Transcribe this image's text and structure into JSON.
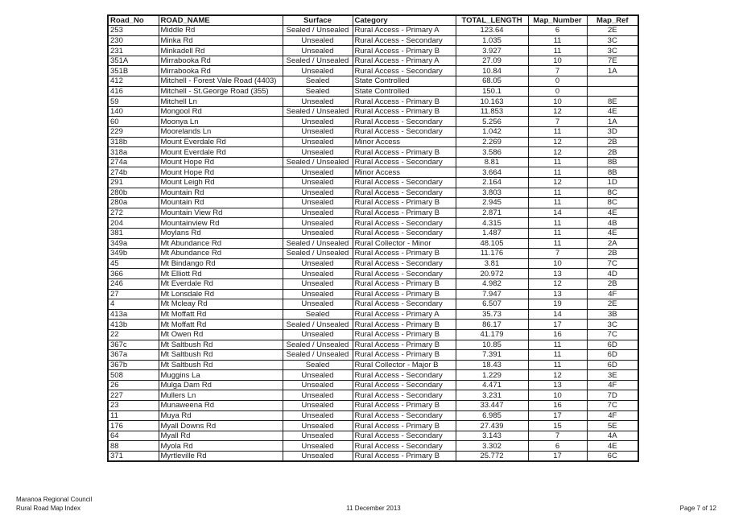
{
  "footer": {
    "left_line1": "Maranoa Regional Council",
    "left_line2": "Rural Road Map Index",
    "center": "11 December 2013",
    "right": "Page 7 of 12"
  },
  "colors": {
    "page_background": "#ffffff",
    "text": "#1a1a1a",
    "table_border": "#1a1a1a"
  },
  "table": {
    "columns": [
      {
        "key": "road_no",
        "label": "Road_No"
      },
      {
        "key": "road_name",
        "label": "ROAD_NAME"
      },
      {
        "key": "surface",
        "label": "Surface"
      },
      {
        "key": "category",
        "label": "Category"
      },
      {
        "key": "total_length",
        "label": "TOTAL_LENGTH"
      },
      {
        "key": "map_number",
        "label": "Map_Number"
      },
      {
        "key": "map_ref",
        "label": "Map_Ref"
      }
    ],
    "rows": [
      [
        "253",
        "Middle Rd",
        "Sealed / Unsealed",
        "Rural Access - Primary A",
        "123.64",
        "6",
        "2E"
      ],
      [
        "230",
        "Minka Rd",
        "Unsealed",
        "Rural Access - Secondary",
        "1.035",
        "11",
        "3C"
      ],
      [
        "231",
        "Minkadell Rd",
        "Unsealed",
        "Rural Access - Primary B",
        "3.927",
        "11",
        "3C"
      ],
      [
        "351A",
        "Mirrabooka Rd",
        "Sealed / Unsealed",
        "Rural Access - Primary A",
        "27.09",
        "10",
        "7E"
      ],
      [
        "351B",
        "Mirrabooka Rd",
        "Unsealed",
        "Rural Access - Secondary",
        "10.84",
        "7",
        "1A"
      ],
      [
        "412",
        "Mitchell - Forest Vale Road (4403)",
        "Sealed",
        "State Controlled",
        "68.05",
        "0",
        ""
      ],
      [
        "416",
        "Mitchell - St.George Road (355)",
        "Sealed",
        "State Controlled",
        "150.1",
        "0",
        ""
      ],
      [
        "59",
        "Mitchell Ln",
        "Unsealed",
        "Rural Access - Primary B",
        "10.163",
        "10",
        "8E"
      ],
      [
        "140",
        "Mongool Rd",
        "Sealed / Unsealed",
        "Rural Access - Primary B",
        "11.853",
        "12",
        "4E"
      ],
      [
        "60",
        "Moonya Ln",
        "Unsealed",
        "Rural Access - Secondary",
        "5.256",
        "7",
        "1A"
      ],
      [
        "229",
        "Moorelands Ln",
        "Unsealed",
        "Rural Access - Secondary",
        "1.042",
        "11",
        "3D"
      ],
      [
        "318b",
        "Mount Everdale Rd",
        "Unsealed",
        "Minor Access",
        "2.269",
        "12",
        "2B"
      ],
      [
        "318a",
        "Mount Everdale Rd",
        "Unsealed",
        "Rural Access - Primary B",
        "3.586",
        "12",
        "2B"
      ],
      [
        "274a",
        "Mount Hope Rd",
        "Sealed / Unsealed",
        "Rural Access - Secondary",
        "8.81",
        "11",
        "8B"
      ],
      [
        "274b",
        "Mount Hope Rd",
        "Unsealed",
        "Minor Access",
        "3.664",
        "11",
        "8B"
      ],
      [
        "291",
        "Mount Leigh Rd",
        "Unsealed",
        "Rural Access - Secondary",
        "2.164",
        "12",
        "1D"
      ],
      [
        "280b",
        "Mountain Rd",
        "Unsealed",
        "Rural Access - Secondary",
        "3.803",
        "11",
        "8C"
      ],
      [
        "280a",
        "Mountain Rd",
        "Unsealed",
        "Rural Access - Primary B",
        "2.945",
        "11",
        "8C"
      ],
      [
        "272",
        "Mountain View Rd",
        "Unsealed",
        "Rural Access - Primary B",
        "2.871",
        "14",
        "4E"
      ],
      [
        "204",
        "Mountainview Rd",
        "Unsealed",
        "Rural Access - Secondary",
        "4.315",
        "11",
        "4B"
      ],
      [
        "381",
        "Moylans Rd",
        "Unsealed",
        "Rural Access - Secondary",
        "1.487",
        "11",
        "4E"
      ],
      [
        "349a",
        "Mt Abundance Rd",
        "Sealed / Unsealed",
        "Rural Collector - Minor",
        "48.105",
        "11",
        "2A"
      ],
      [
        "349b",
        "Mt Abundance Rd",
        "Sealed / Unsealed",
        "Rural Access - Primary B",
        "11.176",
        "7",
        "2B"
      ],
      [
        "45",
        "Mt Bindango Rd",
        "Unsealed",
        "Rural Access - Secondary",
        "3.81",
        "10",
        "7C"
      ],
      [
        "366",
        "Mt Elliott Rd",
        "Unsealed",
        "Rural Access - Secondary",
        "20.972",
        "13",
        "4D"
      ],
      [
        "246",
        "Mt Everdale Rd",
        "Unsealed",
        "Rural Access - Primary B",
        "4.982",
        "12",
        "2B"
      ],
      [
        "27",
        "Mt Lonsdale Rd",
        "Unsealed",
        "Rural Access - Primary B",
        "7.947",
        "13",
        "4F"
      ],
      [
        "4",
        "Mt Mcleay Rd",
        "Unsealed",
        "Rural Access - Secondary",
        "6.507",
        "19",
        "2E"
      ],
      [
        "413a",
        "Mt Moffatt Rd",
        "Sealed",
        "Rural Access - Primary A",
        "35.73",
        "14",
        "3B"
      ],
      [
        "413b",
        "Mt Moffatt Rd",
        "Sealed / Unsealed",
        "Rural Access - Primary B",
        "86.17",
        "17",
        "3C"
      ],
      [
        "22",
        "Mt Owen Rd",
        "Unsealed",
        "Rural Access - Primary B",
        "41.179",
        "16",
        "7C"
      ],
      [
        "367c",
        "Mt Saltbush Rd",
        "Sealed / Unsealed",
        "Rural Access - Primary B",
        "10.85",
        "11",
        "6D"
      ],
      [
        "367a",
        "Mt Saltbush Rd",
        "Sealed / Unsealed",
        "Rural Access - Primary B",
        "7.391",
        "11",
        "6D"
      ],
      [
        "367b",
        "Mt Saltbush Rd",
        "Sealed",
        "Rural Collector - Major B",
        "18.43",
        "11",
        "6D"
      ],
      [
        "508",
        "Muggins La",
        "Unsealed",
        "Rural Access - Secondary",
        "1.229",
        "12",
        "3E"
      ],
      [
        "26",
        "Mulga Dam Rd",
        "Unsealed",
        "Rural Access - Secondary",
        "4.471",
        "13",
        "4F"
      ],
      [
        "227",
        "Mullers Ln",
        "Unsealed",
        "Rural Access - Secondary",
        "3.231",
        "10",
        "7D"
      ],
      [
        "23",
        "Munaweena Rd",
        "Unsealed",
        "Rural Access - Primary B",
        "33.447",
        "16",
        "7C"
      ],
      [
        "11",
        "Muya Rd",
        "Unsealed",
        "Rural Access - Secondary",
        "6.985",
        "17",
        "4F"
      ],
      [
        "176",
        "Myall Downs Rd",
        "Unsealed",
        "Rural Access - Primary B",
        "27.439",
        "15",
        "5E"
      ],
      [
        "64",
        "Myall Rd",
        "Unsealed",
        "Rural Access - Secondary",
        "3.143",
        "7",
        "4A"
      ],
      [
        "88",
        "Myola Rd",
        "Unsealed",
        "Rural Access - Secondary",
        "3.302",
        "6",
        "4E"
      ],
      [
        "371",
        "Myrtleville Rd",
        "Unsealed",
        "Rural Access - Primary B",
        "25.772",
        "17",
        "6C"
      ]
    ]
  }
}
